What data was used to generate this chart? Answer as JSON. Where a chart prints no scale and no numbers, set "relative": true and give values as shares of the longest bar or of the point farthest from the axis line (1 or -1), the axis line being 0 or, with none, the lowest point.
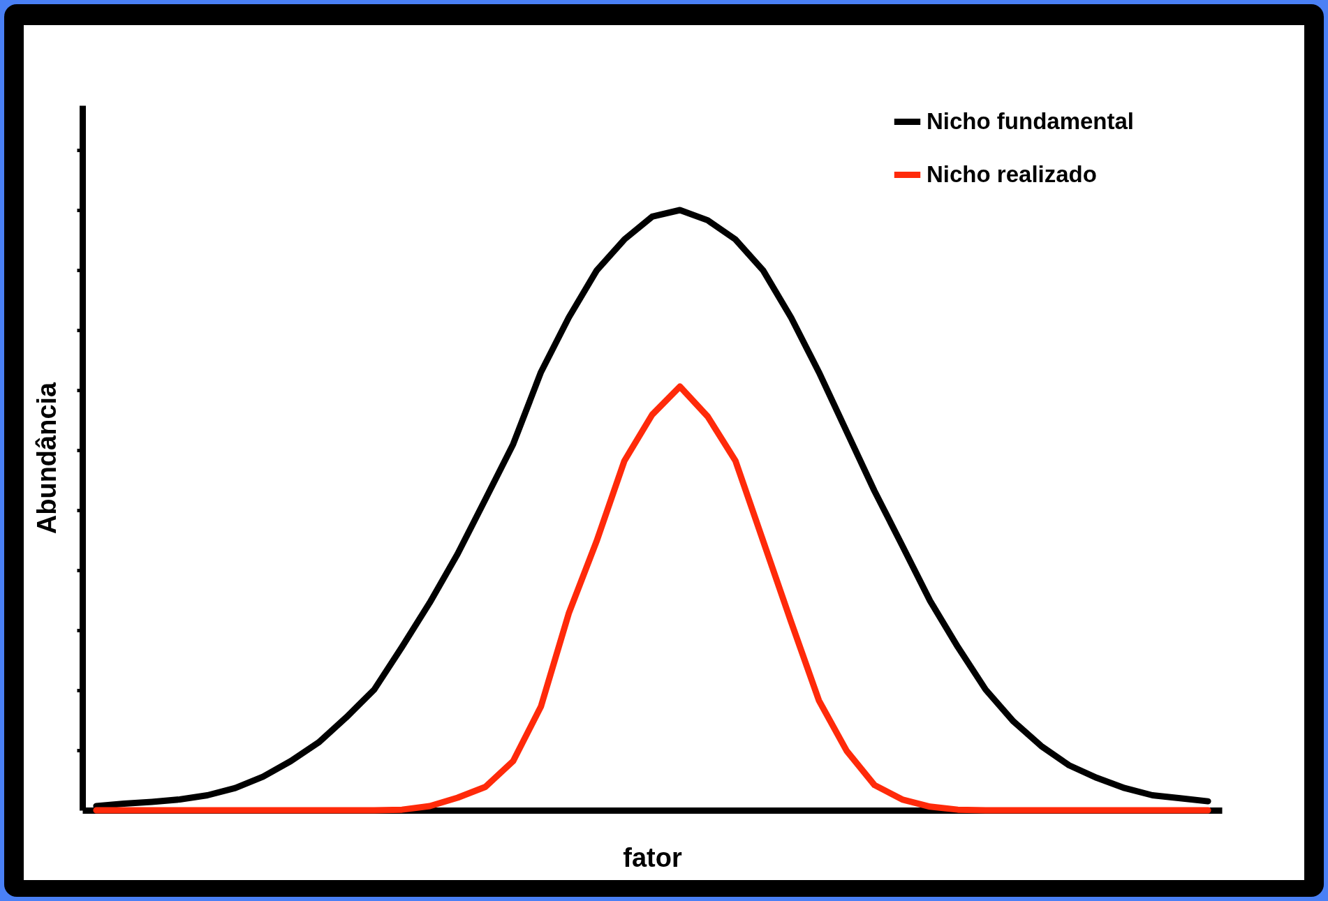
{
  "chart_data": {
    "type": "line",
    "relative": true,
    "xlabel": "fator",
    "ylabel": "Abundância",
    "legend": "top right",
    "grid": false,
    "marker": "none",
    "line_style": "solid",
    "categories": [
      null,
      null,
      null,
      null,
      null,
      null,
      null,
      null,
      null,
      null,
      null,
      null,
      null,
      null,
      null,
      null,
      null,
      null,
      null,
      null,
      null,
      null,
      null,
      null,
      null,
      null,
      null,
      null,
      null,
      null,
      null,
      null,
      null,
      null,
      null,
      null,
      null,
      null,
      null,
      null,
      null
    ],
    "series": [
      {
        "name": "Nicho fundamental",
        "color": "#000000",
        "values": [
          0.007,
          0.011,
          0.014,
          0.018,
          0.025,
          0.037,
          0.056,
          0.082,
          0.113,
          0.155,
          0.201,
          0.272,
          0.346,
          0.427,
          0.518,
          0.61,
          0.73,
          0.821,
          0.899,
          0.951,
          0.989,
          1,
          0.983,
          0.951,
          0.899,
          0.821,
          0.73,
          0.631,
          0.532,
          0.441,
          0.349,
          0.272,
          0.201,
          0.148,
          0.107,
          0.075,
          0.054,
          0.037,
          0.025,
          0.02,
          0.015
        ]
      },
      {
        "name": "Nicho realizado",
        "color": "#ff2a0a",
        "values": [
          0,
          0,
          0,
          0,
          0,
          0,
          0,
          0,
          0,
          0,
          0,
          0.001,
          0.007,
          0.021,
          0.039,
          0.082,
          0.173,
          0.328,
          0.448,
          0.582,
          0.659,
          0.706,
          0.656,
          0.582,
          0.448,
          0.314,
          0.183,
          0.099,
          0.042,
          0.018,
          0.006,
          0.001,
          0,
          0,
          0,
          0,
          0,
          0,
          0,
          0,
          0
        ]
      }
    ]
  }
}
